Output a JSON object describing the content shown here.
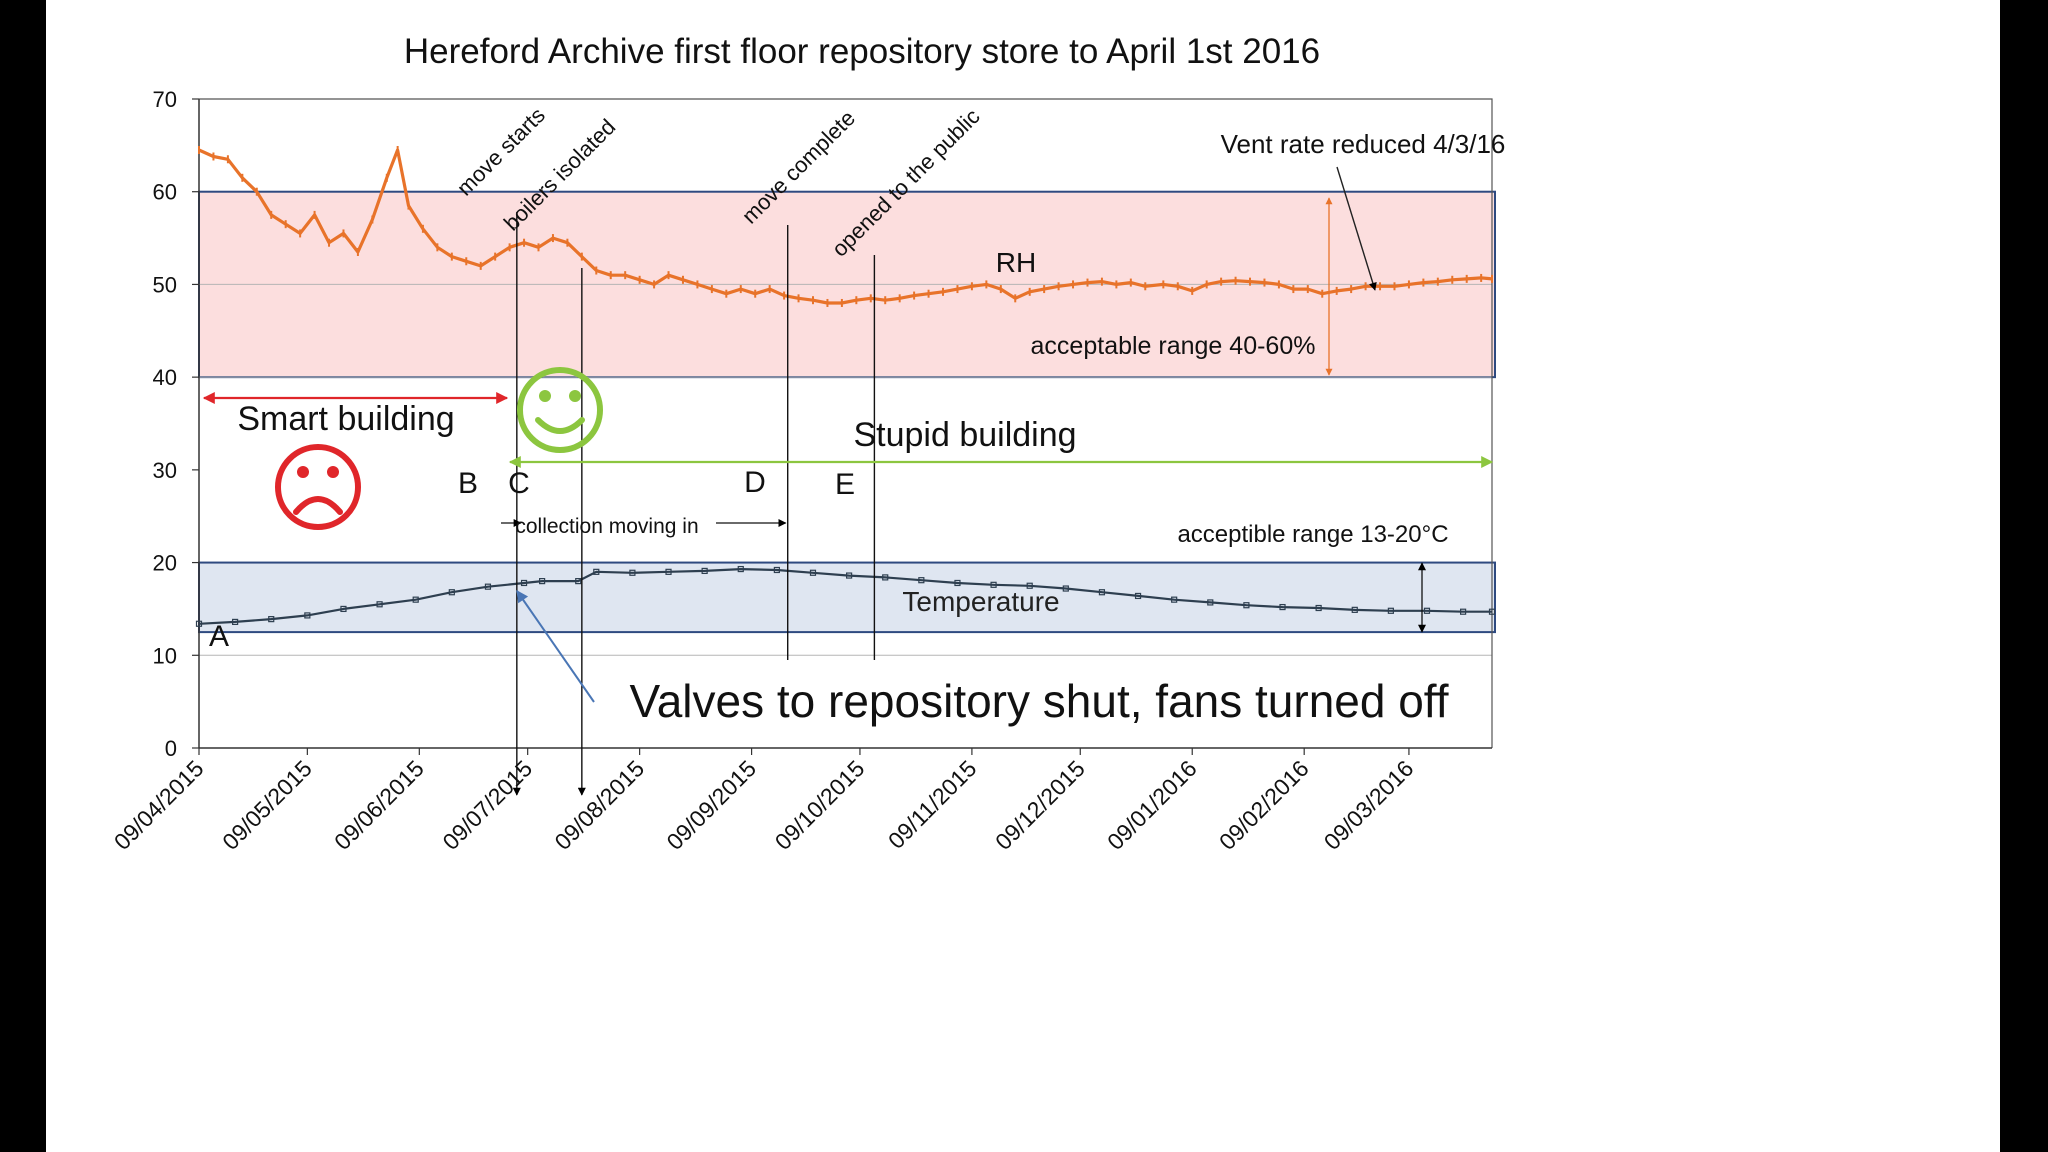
{
  "chart_data": {
    "type": "line",
    "title": "Hereford Archive first floor repository store to April 1st 2016",
    "ylim": [
      0,
      70
    ],
    "yticks": [
      0,
      10,
      20,
      30,
      40,
      50,
      60,
      70
    ],
    "xlim": [
      "2015-04-09",
      "2016-04-01"
    ],
    "xticks": [
      "09/04/2015",
      "09/05/2015",
      "09/06/2015",
      "09/07/2015",
      "09/08/2015",
      "09/09/2015",
      "09/10/2015",
      "09/11/2015",
      "09/12/2015",
      "09/01/2016",
      "09/02/2016",
      "09/03/2016"
    ],
    "grid": false,
    "series": [
      {
        "name": "RH",
        "color": "#e8732a",
        "points": [
          [
            "2015-04-09",
            64.5
          ],
          [
            "2015-04-13",
            63.8
          ],
          [
            "2015-04-17",
            63.5
          ],
          [
            "2015-04-21",
            61.5
          ],
          [
            "2015-04-25",
            60.0
          ],
          [
            "2015-04-29",
            57.5
          ],
          [
            "2015-05-03",
            56.5
          ],
          [
            "2015-05-07",
            55.5
          ],
          [
            "2015-05-11",
            57.5
          ],
          [
            "2015-05-15",
            54.5
          ],
          [
            "2015-05-19",
            55.5
          ],
          [
            "2015-05-23",
            53.5
          ],
          [
            "2015-05-27",
            57.0
          ],
          [
            "2015-05-31",
            61.5
          ],
          [
            "2015-06-03",
            64.5
          ],
          [
            "2015-06-06",
            58.5
          ],
          [
            "2015-06-10",
            56.0
          ],
          [
            "2015-06-14",
            54.0
          ],
          [
            "2015-06-18",
            53.0
          ],
          [
            "2015-06-22",
            52.5
          ],
          [
            "2015-06-26",
            52.0
          ],
          [
            "2015-06-30",
            53.0
          ],
          [
            "2015-07-04",
            54.0
          ],
          [
            "2015-07-08",
            54.5
          ],
          [
            "2015-07-12",
            54.0
          ],
          [
            "2015-07-16",
            55.0
          ],
          [
            "2015-07-20",
            54.5
          ],
          [
            "2015-07-24",
            53.0
          ],
          [
            "2015-07-28",
            51.5
          ],
          [
            "2015-08-01",
            51.0
          ],
          [
            "2015-08-05",
            51.0
          ],
          [
            "2015-08-09",
            50.5
          ],
          [
            "2015-08-13",
            50.0
          ],
          [
            "2015-08-17",
            51.0
          ],
          [
            "2015-08-21",
            50.5
          ],
          [
            "2015-08-25",
            50.0
          ],
          [
            "2015-08-29",
            49.5
          ],
          [
            "2015-09-02",
            49.0
          ],
          [
            "2015-09-06",
            49.5
          ],
          [
            "2015-09-10",
            49.0
          ],
          [
            "2015-09-14",
            49.5
          ],
          [
            "2015-09-18",
            48.8
          ],
          [
            "2015-09-22",
            48.5
          ],
          [
            "2015-09-26",
            48.3
          ],
          [
            "2015-09-30",
            48.0
          ],
          [
            "2015-10-04",
            48.0
          ],
          [
            "2015-10-08",
            48.3
          ],
          [
            "2015-10-12",
            48.5
          ],
          [
            "2015-10-16",
            48.3
          ],
          [
            "2015-10-20",
            48.5
          ],
          [
            "2015-10-24",
            48.8
          ],
          [
            "2015-10-28",
            49.0
          ],
          [
            "2015-11-01",
            49.2
          ],
          [
            "2015-11-05",
            49.5
          ],
          [
            "2015-11-09",
            49.8
          ],
          [
            "2015-11-13",
            50.0
          ],
          [
            "2015-11-17",
            49.5
          ],
          [
            "2015-11-21",
            48.5
          ],
          [
            "2015-11-25",
            49.2
          ],
          [
            "2015-11-29",
            49.5
          ],
          [
            "2015-12-03",
            49.8
          ],
          [
            "2015-12-07",
            50.0
          ],
          [
            "2015-12-11",
            50.2
          ],
          [
            "2015-12-15",
            50.3
          ],
          [
            "2015-12-19",
            50.0
          ],
          [
            "2015-12-23",
            50.2
          ],
          [
            "2015-12-27",
            49.8
          ],
          [
            "2016-01-01",
            50.0
          ],
          [
            "2016-01-05",
            49.8
          ],
          [
            "2016-01-09",
            49.3
          ],
          [
            "2016-01-13",
            50.0
          ],
          [
            "2016-01-17",
            50.3
          ],
          [
            "2016-01-21",
            50.4
          ],
          [
            "2016-01-25",
            50.3
          ],
          [
            "2016-01-29",
            50.2
          ],
          [
            "2016-02-02",
            50.0
          ],
          [
            "2016-02-06",
            49.5
          ],
          [
            "2016-02-10",
            49.5
          ],
          [
            "2016-02-14",
            49.0
          ],
          [
            "2016-02-18",
            49.3
          ],
          [
            "2016-02-22",
            49.5
          ],
          [
            "2016-02-26",
            49.8
          ],
          [
            "2016-03-01",
            49.8
          ],
          [
            "2016-03-05",
            49.8
          ],
          [
            "2016-03-09",
            50.0
          ],
          [
            "2016-03-13",
            50.2
          ],
          [
            "2016-03-17",
            50.3
          ],
          [
            "2016-03-21",
            50.5
          ],
          [
            "2016-03-25",
            50.6
          ],
          [
            "2016-03-29",
            50.7
          ],
          [
            "2016-04-01",
            50.6
          ]
        ]
      },
      {
        "name": "Temperature",
        "color": "#2e3f50",
        "points": [
          [
            "2015-04-09",
            13.4
          ],
          [
            "2015-04-19",
            13.6
          ],
          [
            "2015-04-29",
            13.9
          ],
          [
            "2015-05-09",
            14.3
          ],
          [
            "2015-05-19",
            15.0
          ],
          [
            "2015-05-29",
            15.5
          ],
          [
            "2015-06-08",
            16.0
          ],
          [
            "2015-06-18",
            16.8
          ],
          [
            "2015-06-28",
            17.4
          ],
          [
            "2015-07-08",
            17.8
          ],
          [
            "2015-07-13",
            18.0
          ],
          [
            "2015-07-23",
            18.0
          ],
          [
            "2015-07-28",
            19.0
          ],
          [
            "2015-08-07",
            18.9
          ],
          [
            "2015-08-17",
            19.0
          ],
          [
            "2015-08-27",
            19.1
          ],
          [
            "2015-09-06",
            19.3
          ],
          [
            "2015-09-16",
            19.2
          ],
          [
            "2015-09-26",
            18.9
          ],
          [
            "2015-10-06",
            18.6
          ],
          [
            "2015-10-16",
            18.4
          ],
          [
            "2015-10-26",
            18.1
          ],
          [
            "2015-11-05",
            17.8
          ],
          [
            "2015-11-15",
            17.6
          ],
          [
            "2015-11-25",
            17.5
          ],
          [
            "2015-12-05",
            17.2
          ],
          [
            "2015-12-15",
            16.8
          ],
          [
            "2015-12-25",
            16.4
          ],
          [
            "2016-01-04",
            16.0
          ],
          [
            "2016-01-14",
            15.7
          ],
          [
            "2016-01-24",
            15.4
          ],
          [
            "2016-02-03",
            15.2
          ],
          [
            "2016-02-13",
            15.1
          ],
          [
            "2016-02-23",
            14.9
          ],
          [
            "2016-03-04",
            14.8
          ],
          [
            "2016-03-14",
            14.8
          ],
          [
            "2016-03-24",
            14.7
          ],
          [
            "2016-04-01",
            14.7
          ]
        ]
      }
    ],
    "bands": [
      {
        "name": "rh-acceptable-band",
        "from": 40,
        "to": 60,
        "fill": "#fcdede",
        "stroke": "#2e4a80"
      },
      {
        "name": "temp-acceptable-band",
        "from": 12.5,
        "to": 20,
        "fill": "#dfe6f1",
        "stroke": "#2e4a80"
      }
    ],
    "events": [
      {
        "name": "event-move-starts",
        "label": "move starts",
        "letter": "B",
        "date": "2015-07-06"
      },
      {
        "name": "event-boilers-isolated",
        "label": "boilers isolated",
        "letter": "C",
        "date": "2015-07-24"
      },
      {
        "name": "event-move-complete",
        "label": "move complete",
        "letter": "D",
        "date": "2015-09-19"
      },
      {
        "name": "event-opened-public",
        "label": "opened to the public",
        "letter": "E",
        "date": "2015-10-13"
      }
    ],
    "annotations": {
      "rh_label": "RH",
      "rh_range": "acceptable range 40-60%",
      "temp_label": "Temperature",
      "temp_range": "acceptible range 13-20°C",
      "vent": "Vent rate reduced 4/3/16",
      "smart": "Smart building",
      "stupid": "Stupid building",
      "moving": "collection moving in",
      "valves": "Valves to repository shut, fans turned off",
      "point_a": "A"
    },
    "colors": {
      "smart_arrow": "#e0262a",
      "stupid_arrow": "#8cc63f",
      "sad_face": "#e0262a",
      "happy_face": "#8cc63f",
      "pointer_arrow": "#4a76b5"
    }
  }
}
